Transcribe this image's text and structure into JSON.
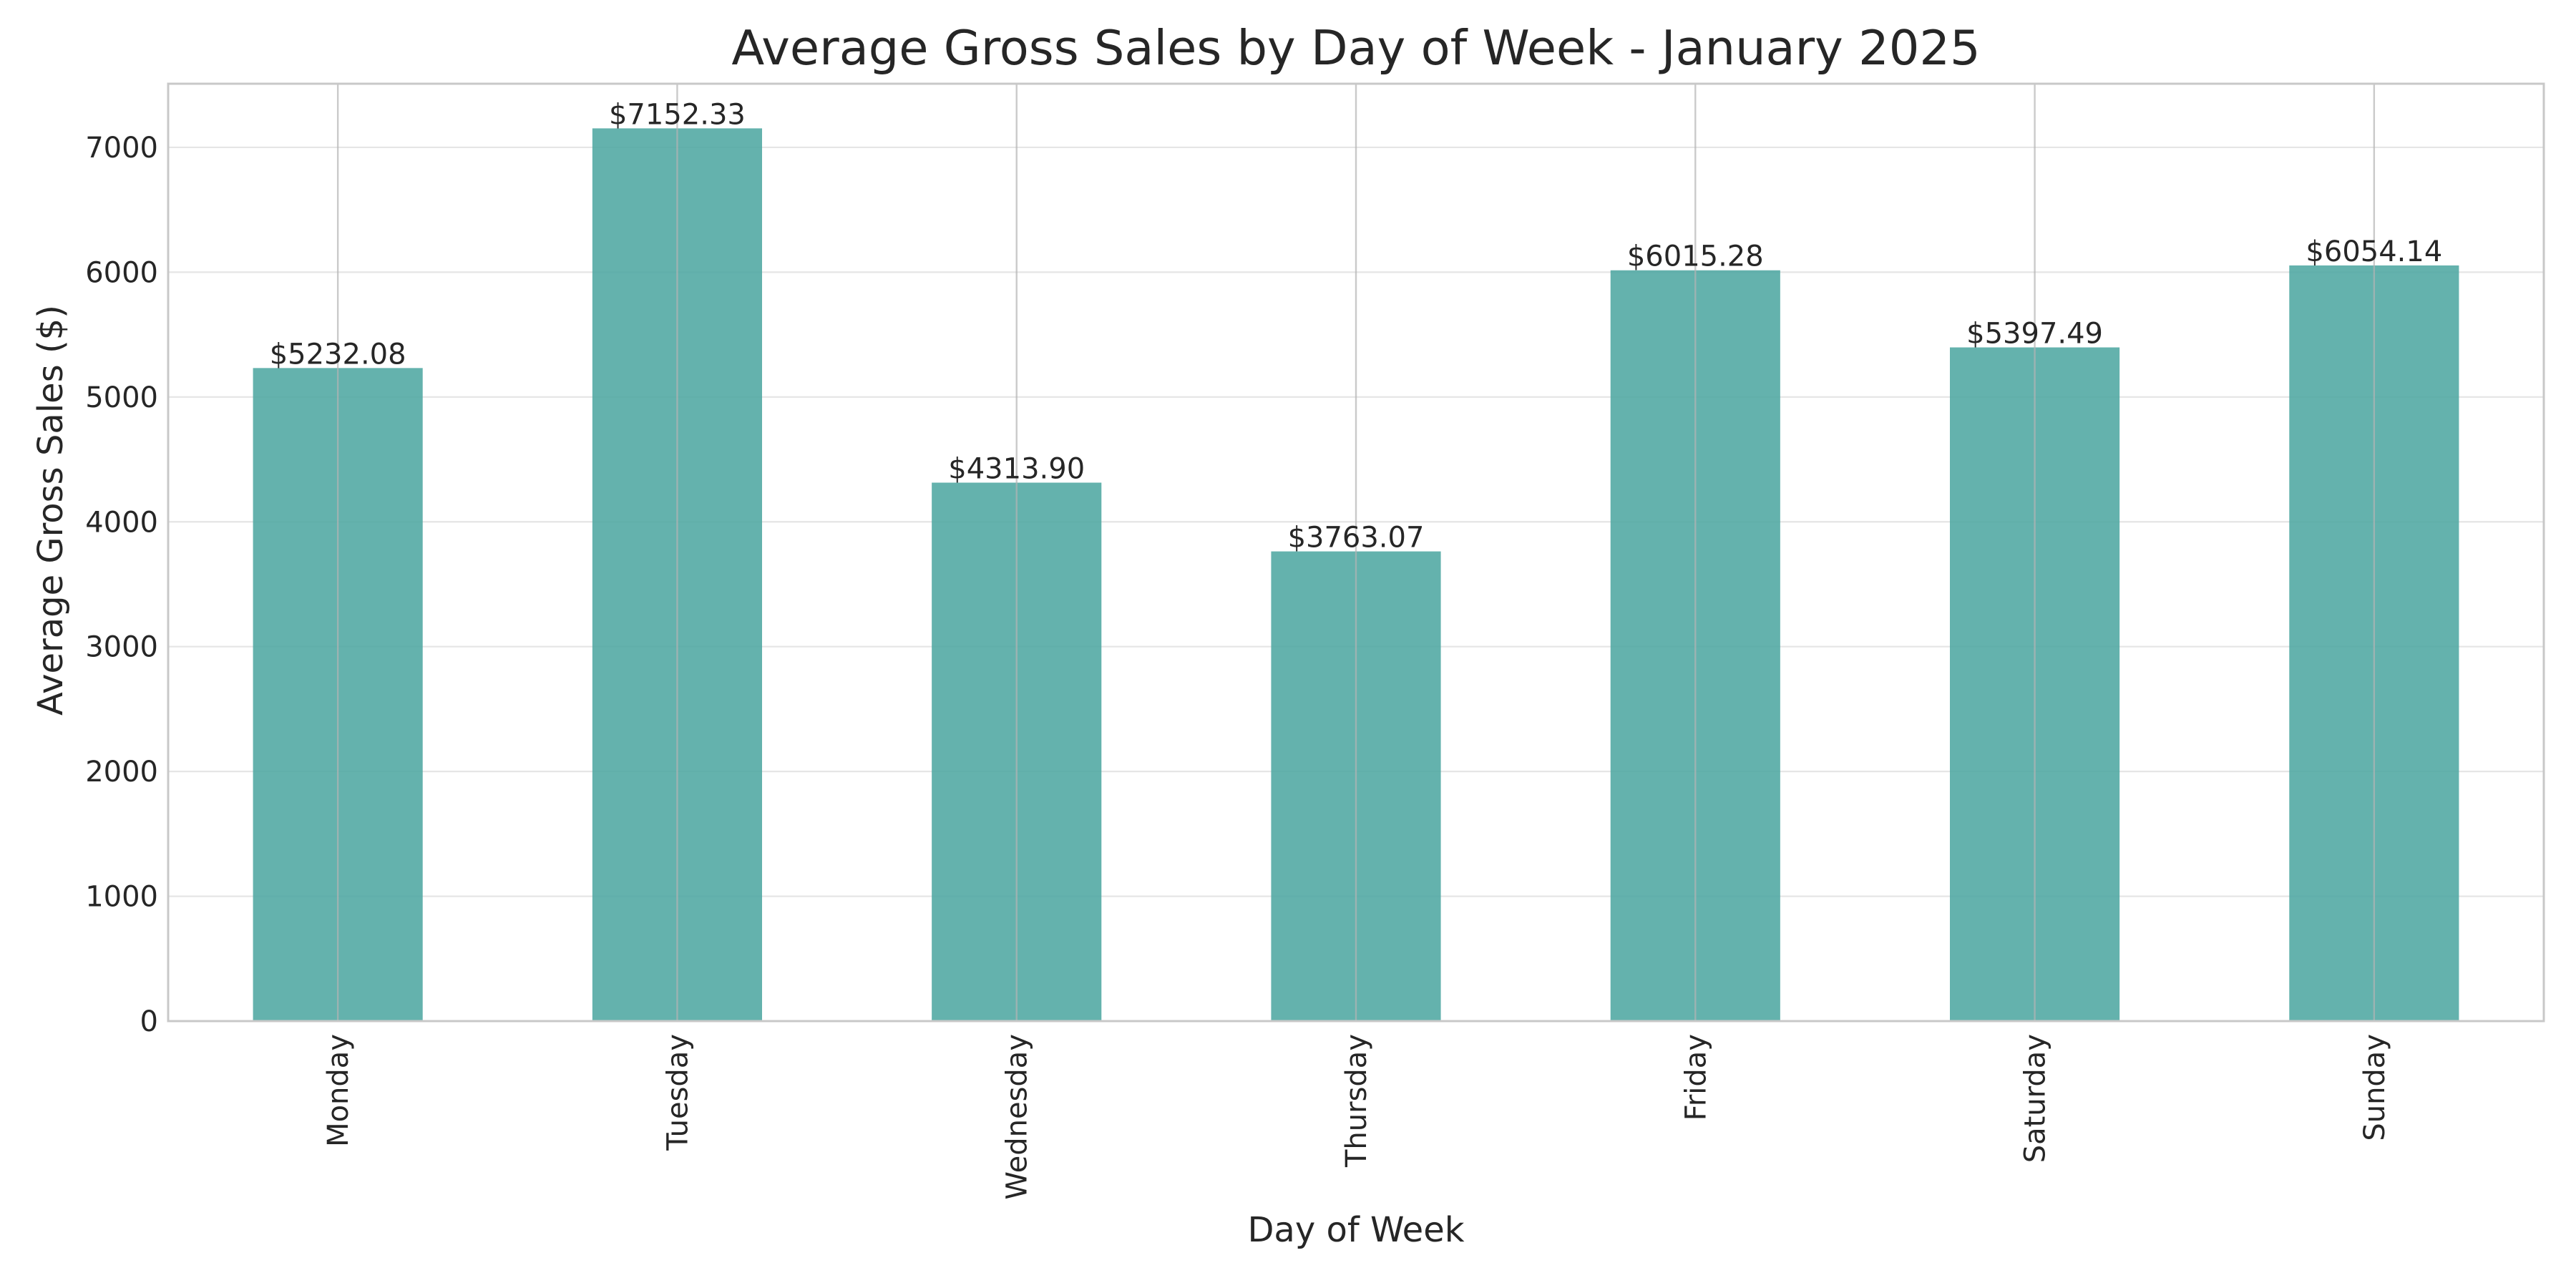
{
  "chart_data": {
    "type": "bar",
    "title": "Average Gross Sales by Day of Week - January 2025",
    "xlabel": "Day of Week",
    "ylabel": "Average Gross Sales ($)",
    "categories": [
      "Monday",
      "Tuesday",
      "Wednesday",
      "Thursday",
      "Friday",
      "Saturday",
      "Sunday"
    ],
    "values": [
      5232.08,
      7152.33,
      4313.9,
      3763.07,
      6015.28,
      5397.49,
      6054.14
    ],
    "data_labels": [
      "$5232.08",
      "$7152.33",
      "$4313.90",
      "$3763.07",
      "$6015.28",
      "$5397.49",
      "$6054.14"
    ],
    "ylim": [
      0,
      7510
    ],
    "yticks": [
      0,
      1000,
      2000,
      3000,
      4000,
      5000,
      6000,
      7000
    ],
    "ytick_labels": [
      "0",
      "1000",
      "2000",
      "3000",
      "4000",
      "5000",
      "6000",
      "7000"
    ],
    "grid": true,
    "legend": "none",
    "colors": {
      "bar": "#4fa7a2",
      "grid": "#cccccc",
      "spine": "#c8c8c8",
      "text": "#262626"
    }
  }
}
